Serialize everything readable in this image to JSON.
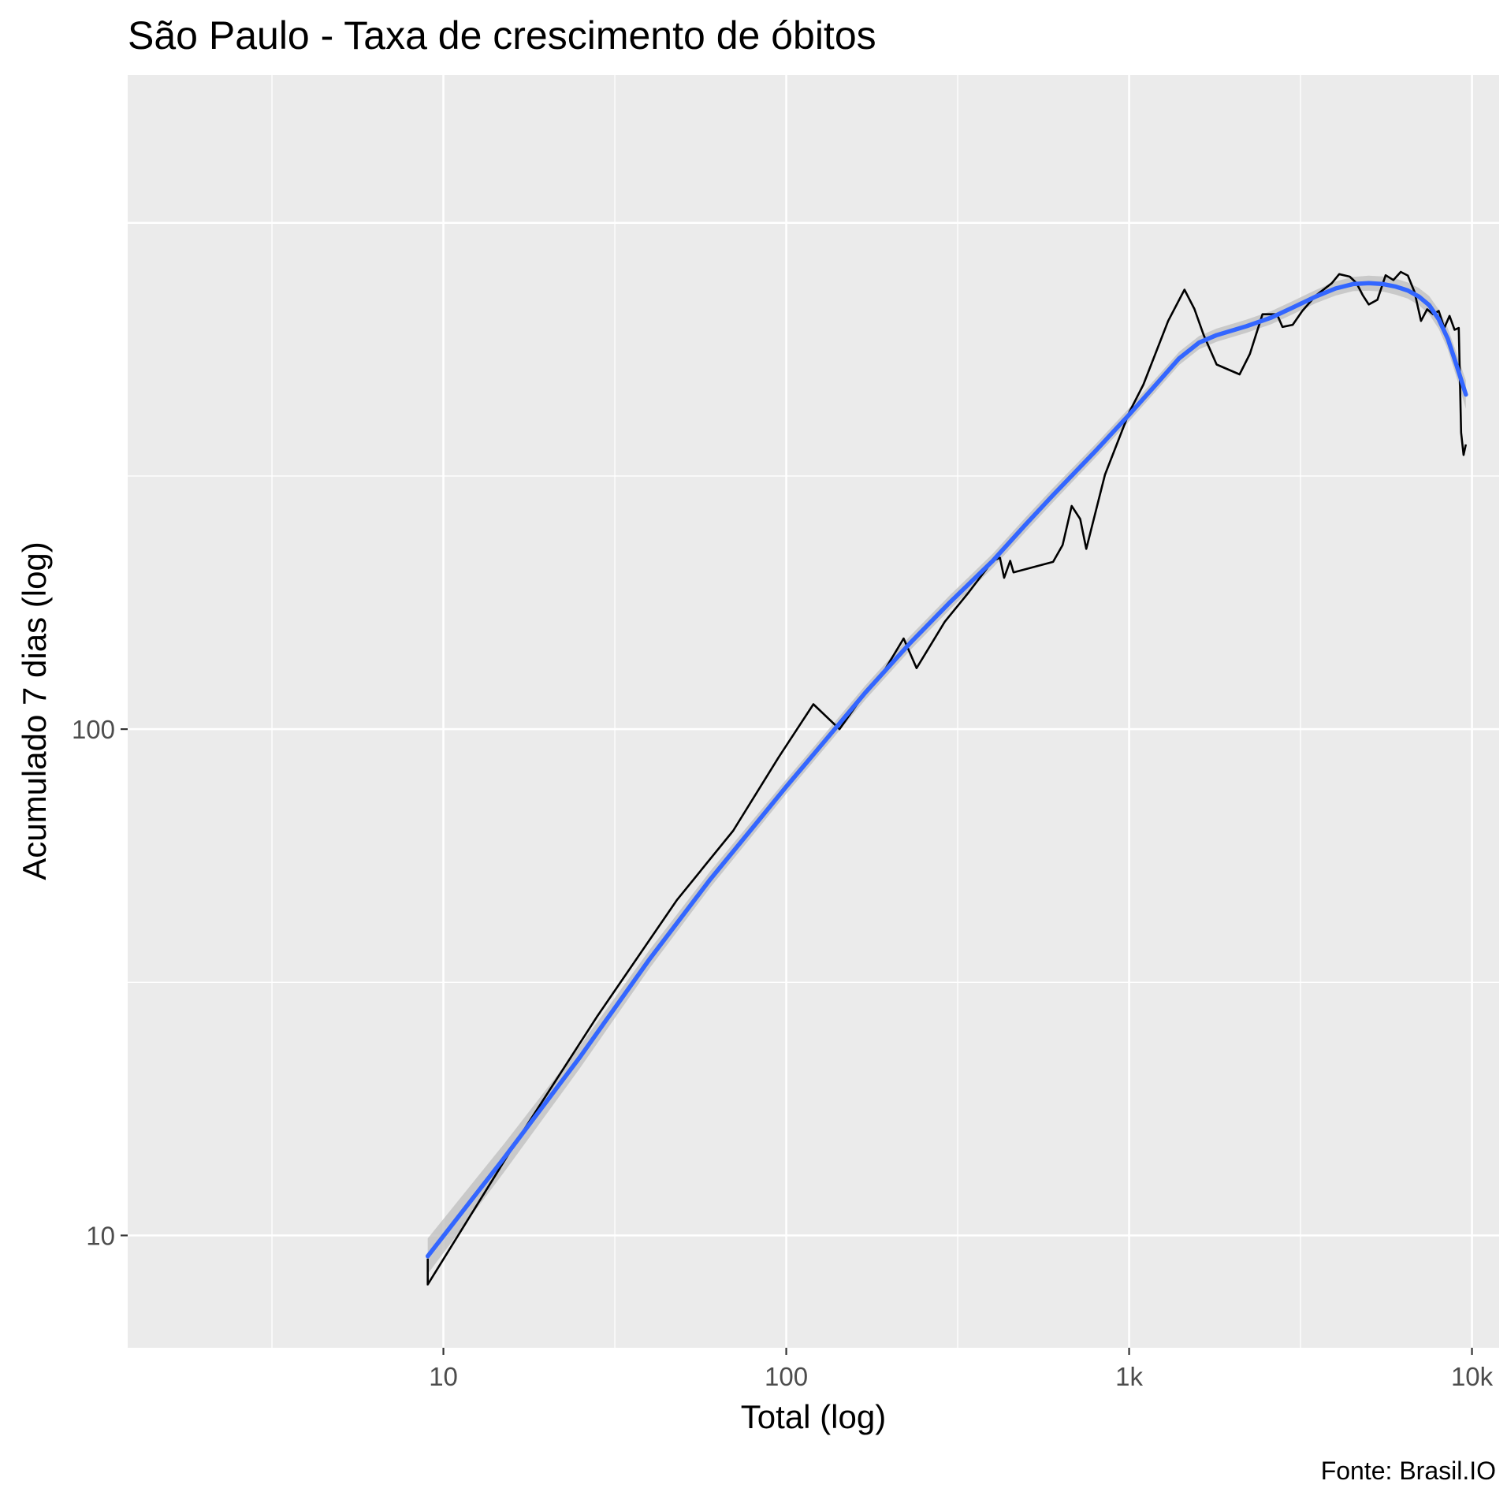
{
  "chart_data": {
    "type": "line",
    "title": "São Paulo - Taxa de crescimento de óbitos",
    "xlabel": "Total (log)",
    "ylabel": "Acumulado 7 dias (log)",
    "caption": "Fonte: Brasil.IO",
    "x_scale": "log10",
    "y_scale": "log10",
    "xlim": [
      1.2,
      12000
    ],
    "ylim": [
      6,
      1960
    ],
    "x_ticks": [
      {
        "value": 10,
        "label": "10"
      },
      {
        "value": 100,
        "label": "100"
      },
      {
        "value": 1000,
        "label": "1k"
      },
      {
        "value": 10000,
        "label": "10k"
      }
    ],
    "y_ticks": [
      {
        "value": 10,
        "label": "10"
      },
      {
        "value": 100,
        "label": "100"
      }
    ],
    "grid": true,
    "colors": {
      "panel_background": "#ebebeb",
      "grid": "#ffffff",
      "observed_line": "#000000",
      "smooth_line": "#3366ff",
      "confidence_band": "#bebebe"
    },
    "series": [
      {
        "kind": "observed",
        "points": [
          [
            9,
            9
          ],
          [
            9,
            8
          ],
          [
            16,
            15
          ],
          [
            28,
            27
          ],
          [
            48,
            46
          ],
          [
            70,
            63
          ],
          [
            95,
            88
          ],
          [
            120,
            112
          ],
          [
            143,
            100
          ],
          [
            170,
            118
          ],
          [
            190,
            128
          ],
          [
            220,
            151
          ],
          [
            240,
            132
          ],
          [
            290,
            163
          ],
          [
            340,
            186
          ],
          [
            400,
            215
          ],
          [
            420,
            218
          ],
          [
            432,
            199
          ],
          [
            450,
            215
          ],
          [
            460,
            204
          ],
          [
            600,
            214
          ],
          [
            640,
            231
          ],
          [
            680,
            276
          ],
          [
            720,
            260
          ],
          [
            750,
            227
          ],
          [
            850,
            318
          ],
          [
            1000,
            422
          ],
          [
            1100,
            479
          ],
          [
            1200,
            557
          ],
          [
            1300,
            640
          ],
          [
            1450,
            738
          ],
          [
            1550,
            676
          ],
          [
            1650,
            600
          ],
          [
            1800,
            525
          ],
          [
            2100,
            502
          ],
          [
            2250,
            551
          ],
          [
            2450,
            660
          ],
          [
            2700,
            660
          ],
          [
            2800,
            623
          ],
          [
            3000,
            629
          ],
          [
            3200,
            670
          ],
          [
            3500,
            718
          ],
          [
            3900,
            760
          ],
          [
            4100,
            792
          ],
          [
            4400,
            783
          ],
          [
            4600,
            761
          ],
          [
            4800,
            720
          ],
          [
            5000,
            690
          ],
          [
            5300,
            705
          ],
          [
            5600,
            788
          ],
          [
            5900,
            771
          ],
          [
            6200,
            800
          ],
          [
            6500,
            787
          ],
          [
            6800,
            730
          ],
          [
            7100,
            640
          ],
          [
            7400,
            675
          ],
          [
            7700,
            660
          ],
          [
            8000,
            670
          ],
          [
            8300,
            620
          ],
          [
            8600,
            655
          ],
          [
            8900,
            615
          ],
          [
            9150,
            620
          ],
          [
            9300,
            385
          ],
          [
            9450,
            348
          ],
          [
            9600,
            365
          ]
        ]
      },
      {
        "kind": "smooth",
        "points": [
          [
            9,
            9.1
          ],
          [
            15,
            14.2
          ],
          [
            25,
            22.5
          ],
          [
            40,
            35.2
          ],
          [
            60,
            50.5
          ],
          [
            80,
            64
          ],
          [
            100,
            77
          ],
          [
            130,
            95
          ],
          [
            170,
            118
          ],
          [
            230,
            148
          ],
          [
            300,
            178
          ],
          [
            400,
            215
          ],
          [
            500,
            254
          ],
          [
            600,
            290
          ],
          [
            800,
            355
          ],
          [
            1000,
            418
          ],
          [
            1200,
            480
          ],
          [
            1400,
            540
          ],
          [
            1600,
            580
          ],
          [
            1800,
            600
          ],
          [
            2200,
            625
          ],
          [
            2600,
            650
          ],
          [
            3000,
            680
          ],
          [
            3500,
            715
          ],
          [
            4000,
            742
          ],
          [
            4500,
            757
          ],
          [
            5000,
            760
          ],
          [
            5500,
            757
          ],
          [
            6000,
            748
          ],
          [
            6500,
            735
          ],
          [
            7000,
            715
          ],
          [
            7500,
            688
          ],
          [
            8000,
            645
          ],
          [
            8500,
            590
          ],
          [
            9000,
            525
          ],
          [
            9600,
            458
          ]
        ],
        "band_halfwidth_log10": [
          0.035,
          0.028,
          0.022,
          0.018,
          0.016,
          0.015,
          0.014,
          0.014,
          0.014,
          0.014,
          0.014,
          0.014,
          0.014,
          0.014,
          0.013,
          0.013,
          0.013,
          0.013,
          0.013,
          0.013,
          0.013,
          0.013,
          0.013,
          0.013,
          0.014,
          0.014,
          0.015,
          0.015,
          0.016,
          0.016,
          0.017,
          0.018,
          0.019,
          0.021,
          0.024,
          0.028
        ]
      }
    ]
  }
}
